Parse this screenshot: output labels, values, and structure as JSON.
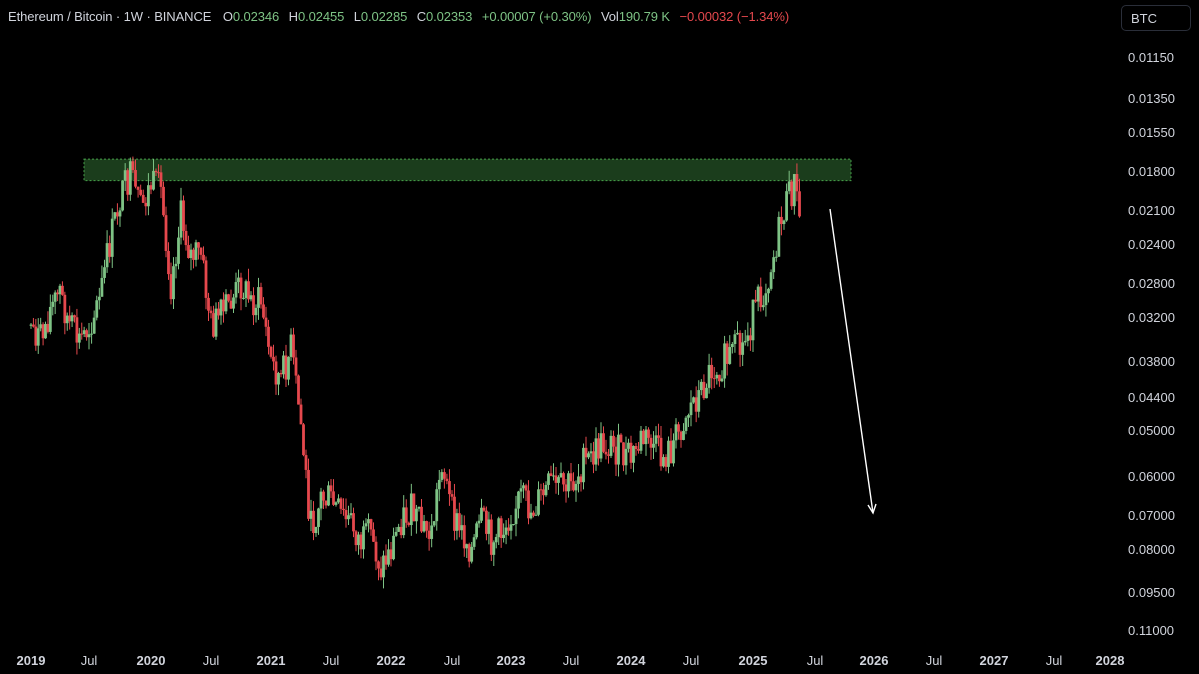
{
  "header": {
    "symbol": "Ethereum / Bitcoin · 1W · BINANCE",
    "open_label": "O",
    "open": "0.02346",
    "high_label": "H",
    "high": "0.02455",
    "low_label": "L",
    "low": "0.02285",
    "close_label": "C",
    "close": "0.02353",
    "change": "+0.00007 (+0.30%)",
    "vol_label": "Vol",
    "vol": "190.79 K",
    "vol_change": "−0.00032 (−1.34%)"
  },
  "currency_button": "BTC",
  "colors": {
    "up": "#7ec385",
    "down": "#e5484d",
    "zone": "#4caf50",
    "arrow": "#ffffff",
    "background": "#000000"
  },
  "chart_data": {
    "type": "candlestick",
    "y_scale": "inverted-log",
    "y_ticks": [
      "0.01150",
      "0.01350",
      "0.01550",
      "0.01800",
      "0.02100",
      "0.02400",
      "0.02800",
      "0.03200",
      "0.03800",
      "0.04400",
      "0.05000",
      "0.06000",
      "0.07000",
      "0.08000",
      "0.09500",
      "0.11000"
    ],
    "x_ticks": [
      {
        "label": "2019",
        "year": true
      },
      {
        "label": "Jul",
        "year": false
      },
      {
        "label": "2020",
        "year": true
      },
      {
        "label": "Jul",
        "year": false
      },
      {
        "label": "2021",
        "year": true
      },
      {
        "label": "Jul",
        "year": false
      },
      {
        "label": "2022",
        "year": true
      },
      {
        "label": "Jul",
        "year": false
      },
      {
        "label": "2023",
        "year": true
      },
      {
        "label": "Jul",
        "year": false
      },
      {
        "label": "2024",
        "year": true
      },
      {
        "label": "Jul",
        "year": false
      },
      {
        "label": "2025",
        "year": true
      },
      {
        "label": "Jul",
        "year": false
      },
      {
        "label": "2026",
        "year": true
      },
      {
        "label": "Jul",
        "year": false
      },
      {
        "label": "2027",
        "year": true
      },
      {
        "label": "Jul",
        "year": false
      },
      {
        "label": "2028",
        "year": true
      }
    ],
    "x_range": [
      "2019-01",
      "2028-01"
    ],
    "series": [
      {
        "values": [
          {
            "date": "2019-01",
            "close": 0.033
          },
          {
            "date": "2019-02",
            "close": 0.035
          },
          {
            "date": "2019-03",
            "close": 0.031
          },
          {
            "date": "2019-04",
            "close": 0.029
          },
          {
            "date": "2019-05",
            "close": 0.033
          },
          {
            "date": "2019-06",
            "close": 0.035
          },
          {
            "date": "2019-07",
            "close": 0.033
          },
          {
            "date": "2019-08",
            "close": 0.03
          },
          {
            "date": "2019-09",
            "close": 0.024
          },
          {
            "date": "2019-10",
            "close": 0.02
          },
          {
            "date": "2019-11",
            "close": 0.0185
          },
          {
            "date": "2019-12",
            "close": 0.021
          },
          {
            "date": "2020-01",
            "close": 0.019
          },
          {
            "date": "2020-02",
            "close": 0.0195
          },
          {
            "date": "2020-03",
            "close": 0.028
          },
          {
            "date": "2020-04",
            "close": 0.0215
          },
          {
            "date": "2020-05",
            "close": 0.025
          },
          {
            "date": "2020-06",
            "close": 0.025
          },
          {
            "date": "2020-07",
            "close": 0.033
          },
          {
            "date": "2020-08",
            "close": 0.032
          },
          {
            "date": "2020-09",
            "close": 0.03
          },
          {
            "date": "2020-10",
            "close": 0.028
          },
          {
            "date": "2020-11",
            "close": 0.03
          },
          {
            "date": "2020-12",
            "close": 0.03
          },
          {
            "date": "2021-01",
            "close": 0.038
          },
          {
            "date": "2021-02",
            "close": 0.041
          },
          {
            "date": "2021-03",
            "close": 0.036
          },
          {
            "date": "2021-04",
            "close": 0.049
          },
          {
            "date": "2021-05",
            "close": 0.074
          },
          {
            "date": "2021-06",
            "close": 0.065
          },
          {
            "date": "2021-07",
            "close": 0.066
          },
          {
            "date": "2021-08",
            "close": 0.07
          },
          {
            "date": "2021-09",
            "close": 0.072
          },
          {
            "date": "2021-10",
            "close": 0.078
          },
          {
            "date": "2021-11",
            "close": 0.076
          },
          {
            "date": "2021-12",
            "close": 0.086
          },
          {
            "date": "2022-01",
            "close": 0.08
          },
          {
            "date": "2022-02",
            "close": 0.071
          },
          {
            "date": "2022-03",
            "close": 0.069
          },
          {
            "date": "2022-04",
            "close": 0.074
          },
          {
            "date": "2022-05",
            "close": 0.075
          },
          {
            "date": "2022-06",
            "close": 0.056
          },
          {
            "date": "2022-07",
            "close": 0.07
          },
          {
            "date": "2022-08",
            "close": 0.075
          },
          {
            "date": "2022-09",
            "close": 0.08
          },
          {
            "date": "2022-10",
            "close": 0.072
          },
          {
            "date": "2022-11",
            "close": 0.077
          },
          {
            "date": "2022-12",
            "close": 0.075
          },
          {
            "date": "2023-01",
            "close": 0.069
          },
          {
            "date": "2023-02",
            "close": 0.065
          },
          {
            "date": "2023-03",
            "close": 0.069
          },
          {
            "date": "2023-04",
            "close": 0.065
          },
          {
            "date": "2023-05",
            "close": 0.062
          },
          {
            "date": "2023-06",
            "close": 0.063
          },
          {
            "date": "2023-07",
            "close": 0.062
          },
          {
            "date": "2023-08",
            "close": 0.058
          },
          {
            "date": "2023-09",
            "close": 0.056
          },
          {
            "date": "2023-10",
            "close": 0.053
          },
          {
            "date": "2023-11",
            "close": 0.053
          },
          {
            "date": "2023-12",
            "close": 0.055
          },
          {
            "date": "2024-01",
            "close": 0.056
          },
          {
            "date": "2024-02",
            "close": 0.052
          },
          {
            "date": "2024-03",
            "close": 0.052
          },
          {
            "date": "2024-04",
            "close": 0.056
          },
          {
            "date": "2024-05",
            "close": 0.054
          },
          {
            "date": "2024-06",
            "close": 0.049
          },
          {
            "date": "2024-07",
            "close": 0.045
          },
          {
            "date": "2024-08",
            "close": 0.043
          },
          {
            "date": "2024-09",
            "close": 0.039
          },
          {
            "date": "2024-10",
            "close": 0.0385
          },
          {
            "date": "2024-11",
            "close": 0.037
          },
          {
            "date": "2024-12",
            "close": 0.036
          },
          {
            "date": "2025-01",
            "close": 0.032
          },
          {
            "date": "2025-02",
            "close": 0.029
          },
          {
            "date": "2025-03",
            "close": 0.025
          },
          {
            "date": "2025-04",
            "close": 0.021
          },
          {
            "date": "2025-05",
            "close": 0.019
          },
          {
            "date": "2025-06",
            "close": 0.024
          }
        ]
      }
    ],
    "annotations": [
      {
        "type": "zone",
        "from_date": "2019-06",
        "to_date": "2025-06",
        "price_top": 0.0172,
        "price_bottom": 0.0187,
        "color": "#4caf50"
      },
      {
        "type": "arrow",
        "from_date": "2025-09",
        "from_price": 0.021,
        "to_date": "2025-12",
        "to_price": 0.07,
        "color": "#ffffff"
      }
    ]
  }
}
